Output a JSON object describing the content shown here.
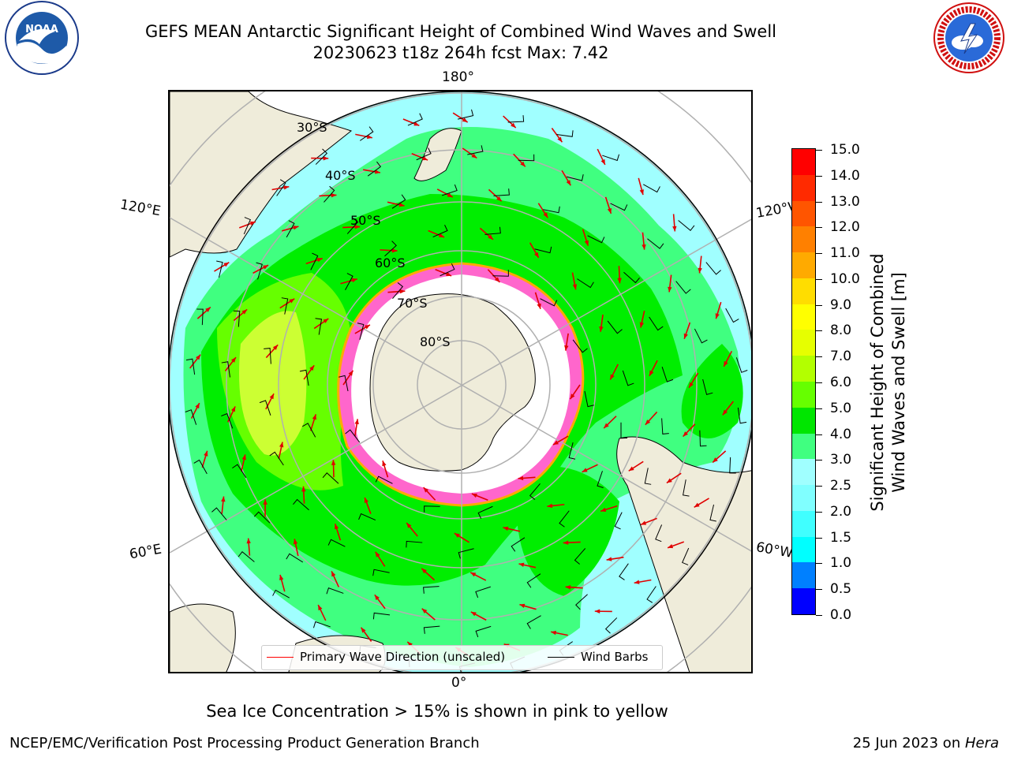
{
  "title_line1": "GEFS MEAN Antarctic Significant Height of Combined Wind Waves and Swell",
  "title_line2": "20230623 t18z 264h fcst   Max: 7.42",
  "longitude_labels": {
    "top": "180°",
    "bottom": "0°",
    "upper_left": "120°E",
    "upper_right": "120°W",
    "lower_left": "60°E",
    "lower_right": "60°W"
  },
  "latitude_labels": [
    "30°S",
    "40°S",
    "50°S",
    "60°S",
    "70°S",
    "80°S"
  ],
  "legend": {
    "wave_label": "Primary Wave Direction (unscaled)",
    "wind_label": "Wind Barbs",
    "wave_color": "#ff0000",
    "wind_color": "#000000"
  },
  "colorbar": {
    "title_line1": "Significant Height of Combined",
    "title_line2": "Wind Waves and Swell [m]",
    "ticks": [
      "0.0",
      "0.5",
      "1.0",
      "1.5",
      "2.0",
      "2.5",
      "3.0",
      "4.0",
      "5.0",
      "6.0",
      "7.0",
      "8.0",
      "9.0",
      "10.0",
      "11.0",
      "12.0",
      "13.0",
      "14.0",
      "15.0"
    ],
    "colors": [
      "#0000ff",
      "#0080ff",
      "#00ffff",
      "#40ffff",
      "#80ffff",
      "#a0ffff",
      "#40ff80",
      "#00e600",
      "#66ff00",
      "#b3ff00",
      "#e6ff00",
      "#ffff00",
      "#ffdd00",
      "#ffaa00",
      "#ff8000",
      "#ff5500",
      "#ff2a00",
      "#ff0000"
    ]
  },
  "colors": {
    "land": "#efecda",
    "sea_ice": "#ff66cc",
    "ocean_high": "#ccff33",
    "ocean_mid": "#00ee00",
    "ocean_low": "#a0ffff"
  },
  "note": "Sea Ice Concentration > 15% is shown in pink to yellow",
  "footer_left": "NCEP/EMC/Verification Post Processing Product Generation Branch",
  "footer_date": "25 Jun 2023 on ",
  "footer_host": "Hera",
  "logos": {
    "left": "NOAA",
    "right": "NATIONAL WEATHER SERVICE",
    "left_ring": "NATIONAL OCEANIC AND ATMOSPHERIC ADMINISTRATION"
  }
}
